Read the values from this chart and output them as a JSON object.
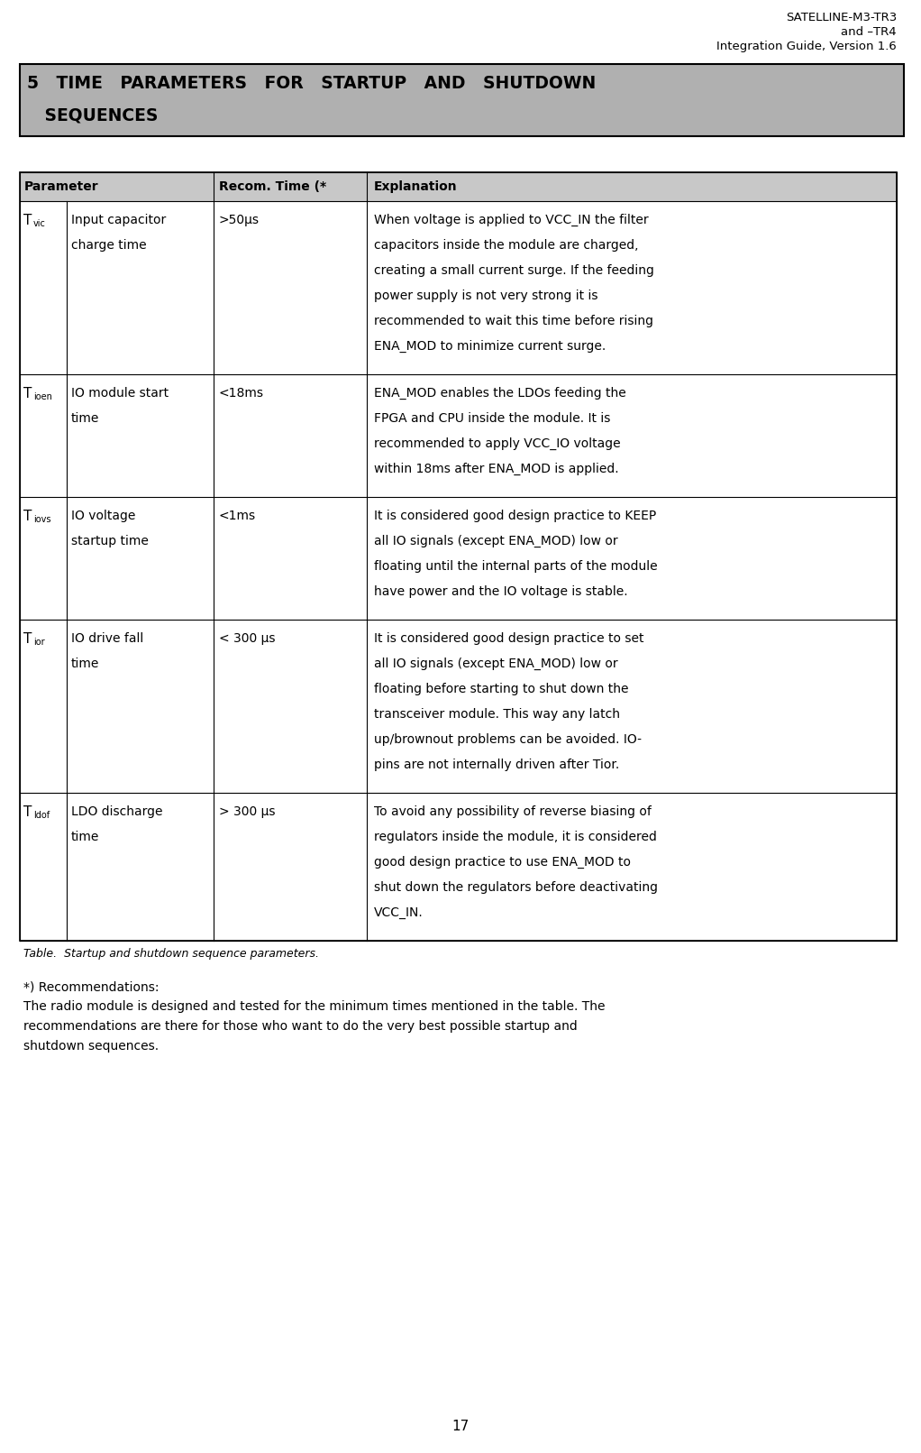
{
  "header_line1": "SATELLINE-M3-TR3",
  "header_line2": "and –TR4",
  "header_line3": "Integration Guide, Version 1.6",
  "section_bg": "#b0b0b0",
  "table_header_bg": "#c8c8c8",
  "col_headers": [
    "Parameter",
    "Recom. Time (*",
    "Explanation"
  ],
  "rows": [
    {
      "param_sym": "T",
      "param_sub": "vic",
      "param_name": "Input capacitor\ncharge time",
      "recom": ">50μs",
      "expl_lines": [
        "When voltage is applied to VCC_IN the filter",
        "capacitors inside the module are charged,",
        "creating a small current surge. If the feeding",
        "power supply is not very strong it is",
        "recommended to wait this time before rising",
        "ENA_MOD to minimize current surge."
      ]
    },
    {
      "param_sym": "T",
      "param_sub": "ioen",
      "param_name": "IO module start\ntime",
      "recom": "<18ms",
      "expl_lines": [
        "ENA_MOD enables the LDOs feeding the",
        "FPGA and CPU inside the module. It is",
        "recommended to apply VCC_IO voltage",
        "within 18ms after ENA_MOD is applied."
      ]
    },
    {
      "param_sym": "T",
      "param_sub": "iovs",
      "param_name": "IO voltage\nstartup time",
      "recom": "<1ms",
      "expl_lines": [
        "It is considered good design practice to KEEP",
        "all IO signals (except ENA_MOD) low or",
        "floating until the internal parts of the module",
        "have power and the IO voltage is stable."
      ]
    },
    {
      "param_sym": "T",
      "param_sub": "ior",
      "param_name": "IO drive fall\ntime",
      "recom": "< 300 μs",
      "expl_lines": [
        "It is considered good design practice to set",
        "all IO signals (except ENA_MOD) low or",
        "floating before starting to shut down the",
        "transceiver module. This way any latch",
        "up/brownout problems can be avoided. IO-",
        "pins are not internally driven after Tior."
      ]
    },
    {
      "param_sym": "T",
      "param_sub": "ldof",
      "param_name": "LDO discharge\ntime",
      "recom": "> 300 μs",
      "expl_lines": [
        "To avoid any possibility of reverse biasing of",
        "regulators inside the module, it is considered",
        "good design practice to use ENA_MOD to",
        "shut down the regulators before deactivating",
        "VCC_IN."
      ]
    }
  ],
  "table_caption": "Table.  Startup and shutdown sequence parameters.",
  "footnote_line1": "*) Recommendations:",
  "footnote_line2": "The radio module is designed and tested for the minimum times mentioned in the table. The",
  "footnote_line3": "recommendations are there for those who want to do the very best possible startup and",
  "footnote_line4": "shutdown sequences.",
  "page_number": "17",
  "bg_color": "#ffffff",
  "text_color": "#000000",
  "border_color": "#000000"
}
